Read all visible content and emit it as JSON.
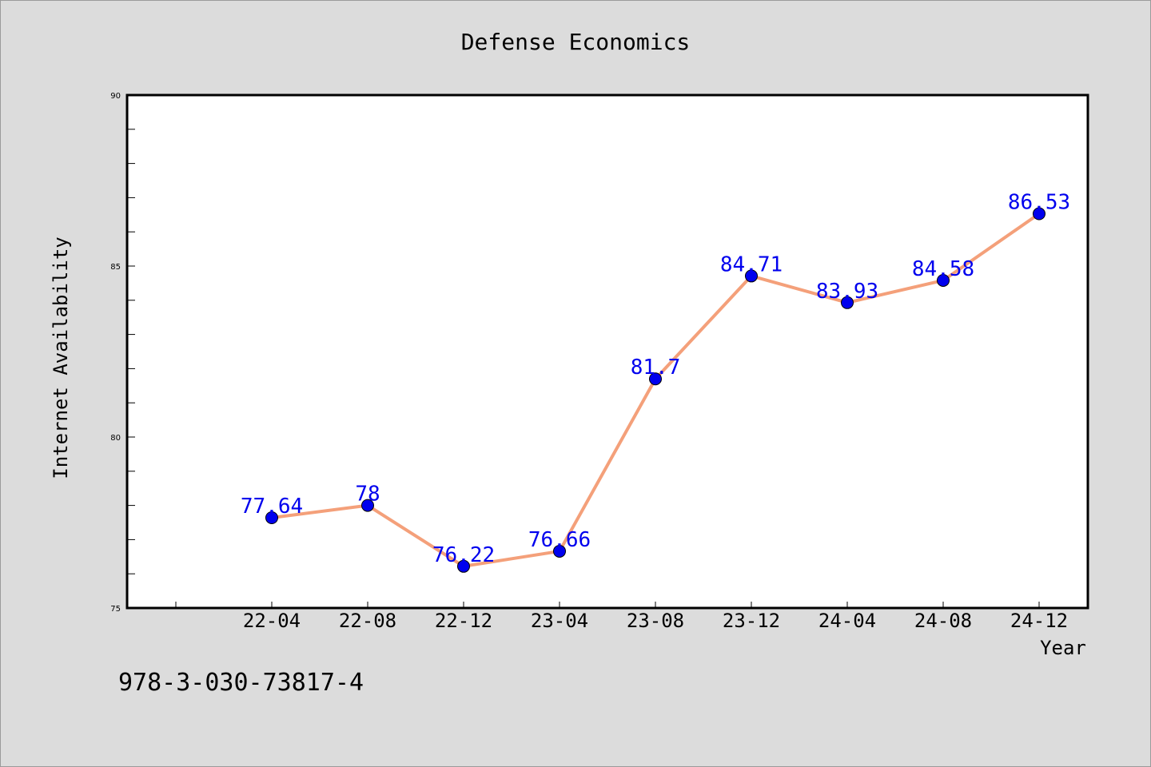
{
  "chart_data": {
    "type": "line",
    "title": "Defense Economics",
    "xlabel": "Year",
    "ylabel": "Internet Availability",
    "categories": [
      "22-04",
      "22-08",
      "22-12",
      "23-04",
      "23-08",
      "23-12",
      "24-04",
      "24-08",
      "24-12"
    ],
    "series": [
      {
        "values": [
          77.64,
          78,
          76.22,
          76.66,
          81.7,
          84.71,
          83.93,
          84.58,
          86.53
        ]
      }
    ],
    "data_labels": [
      "77.64",
      "78",
      "76.22",
      "76.66",
      "81.7",
      "84.71",
      "83.93",
      "84.58",
      "86.53"
    ],
    "ylim": [
      75,
      90
    ],
    "yticks": [
      75,
      80,
      85,
      90
    ],
    "ytick_labels": [
      "75",
      "80",
      "85",
      "90"
    ],
    "grid": false,
    "line_color": "#f4a07a",
    "marker_color": "#0000ee",
    "label_color": "#0000ee"
  },
  "footer_text": "978-3-030-73817-4"
}
